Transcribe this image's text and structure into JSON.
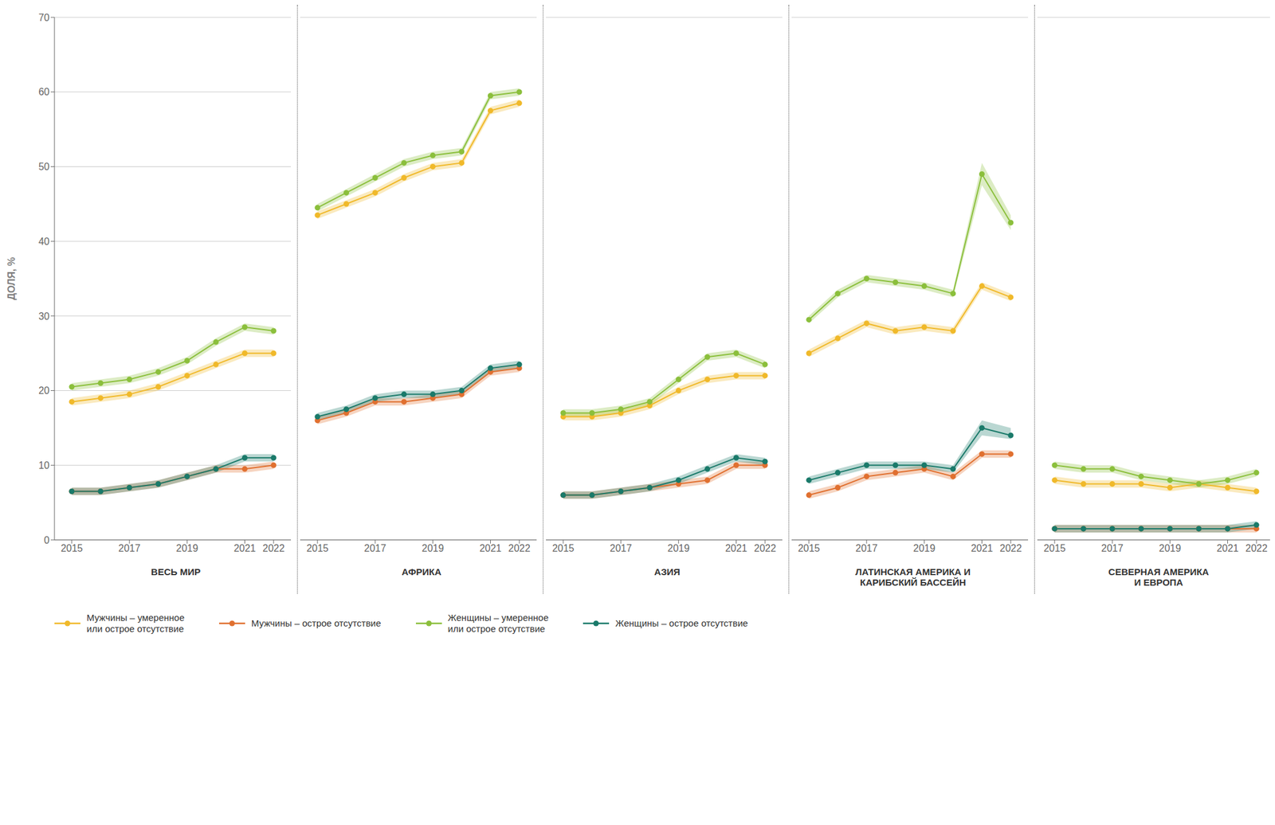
{
  "chart_data": [
    {
      "type": "line",
      "title": "ВЕСЬ МИР",
      "ylabel": "ДОЛЯ, %",
      "x": [
        2015,
        2016,
        2017,
        2018,
        2019,
        2020,
        2021,
        2022
      ],
      "xlim": [
        2014.4,
        2022.6
      ],
      "xticks": [
        2015,
        2017,
        2019,
        2021,
        2022
      ],
      "ylim": [
        0,
        70
      ],
      "yticks": [
        0,
        10,
        20,
        30,
        40,
        50,
        60,
        70
      ],
      "grid": true,
      "marker": "circle",
      "series": [
        {
          "name": "Мужчины – умеренное\nили острое отсутствие",
          "color": "#F0B92A",
          "values": [
            18.5,
            19.0,
            19.5,
            20.5,
            22.0,
            23.5,
            25.0,
            25.0
          ],
          "lower": [
            18.0,
            18.5,
            19.0,
            20.0,
            21.5,
            23.0,
            24.5,
            24.5
          ],
          "upper": [
            19.0,
            19.5,
            20.0,
            21.0,
            22.5,
            24.0,
            25.5,
            25.5
          ]
        },
        {
          "name": "Мужчины – острое отсутствие",
          "color": "#E07030",
          "values": [
            6.5,
            6.5,
            7.0,
            7.5,
            8.5,
            9.5,
            9.5,
            10.0
          ],
          "lower": [
            6.0,
            6.0,
            6.5,
            7.0,
            8.0,
            9.0,
            9.0,
            9.5
          ],
          "upper": [
            7.0,
            7.0,
            7.5,
            8.0,
            9.0,
            10.0,
            10.0,
            10.5
          ]
        },
        {
          "name": "Женщины – умеренное\nили острое отсутствие",
          "color": "#8BBF3C",
          "values": [
            20.5,
            21.0,
            21.5,
            22.5,
            24.0,
            26.5,
            28.5,
            28.0
          ],
          "lower": [
            20.0,
            20.5,
            21.0,
            22.0,
            23.5,
            26.0,
            28.0,
            27.5
          ],
          "upper": [
            21.0,
            21.5,
            22.0,
            23.0,
            24.5,
            27.0,
            29.0,
            28.5
          ]
        },
        {
          "name": "Женщины – острое отсутствие",
          "color": "#1A7A6A",
          "values": [
            6.5,
            6.5,
            7.0,
            7.5,
            8.5,
            9.5,
            11.0,
            11.0
          ],
          "lower": [
            6.0,
            6.0,
            6.5,
            7.0,
            8.0,
            9.0,
            10.5,
            10.5
          ],
          "upper": [
            7.0,
            7.0,
            7.5,
            8.0,
            9.0,
            10.0,
            11.5,
            11.5
          ]
        }
      ]
    },
    {
      "type": "line",
      "title": "АФРИКА",
      "x": [
        2015,
        2016,
        2017,
        2018,
        2019,
        2020,
        2021,
        2022
      ],
      "xlim": [
        2014.4,
        2022.6
      ],
      "xticks": [
        2015,
        2017,
        2019,
        2021,
        2022
      ],
      "ylim": [
        0,
        70
      ],
      "yticks": [
        0,
        10,
        20,
        30,
        40,
        50,
        60,
        70
      ],
      "grid": true,
      "tick_labels": "x",
      "marker": "circle",
      "series": [
        {
          "name": "Мужчины – умеренное\nили острое отсутствие",
          "color": "#F0B92A",
          "values": [
            43.5,
            45.0,
            46.5,
            48.5,
            50.0,
            50.5,
            57.5,
            58.5
          ],
          "lower": [
            43.0,
            44.5,
            46.0,
            48.0,
            49.5,
            50.0,
            57.0,
            58.0
          ],
          "upper": [
            44.0,
            45.5,
            47.0,
            49.0,
            50.5,
            51.0,
            58.0,
            59.0
          ]
        },
        {
          "name": "Мужчины – острое отсутствие",
          "color": "#E07030",
          "values": [
            16.0,
            17.0,
            18.5,
            18.5,
            19.0,
            19.5,
            22.5,
            23.0
          ],
          "lower": [
            15.5,
            16.5,
            18.0,
            18.0,
            18.5,
            19.0,
            22.0,
            22.5
          ],
          "upper": [
            16.5,
            17.5,
            19.0,
            19.0,
            19.5,
            20.0,
            23.0,
            23.5
          ]
        },
        {
          "name": "Женщины – умеренное\nили острое отсутствие",
          "color": "#8BBF3C",
          "values": [
            44.5,
            46.5,
            48.5,
            50.5,
            51.5,
            52.0,
            59.5,
            60.0
          ],
          "lower": [
            44.0,
            46.0,
            48.0,
            50.0,
            51.0,
            51.5,
            59.0,
            59.5
          ],
          "upper": [
            45.0,
            47.0,
            49.0,
            51.0,
            52.0,
            52.5,
            60.0,
            60.5
          ]
        },
        {
          "name": "Женщины – острое отсутствие",
          "color": "#1A7A6A",
          "values": [
            16.5,
            17.5,
            19.0,
            19.5,
            19.5,
            20.0,
            23.0,
            23.5
          ],
          "lower": [
            16.0,
            17.0,
            18.5,
            19.0,
            19.0,
            19.5,
            22.5,
            23.0
          ],
          "upper": [
            17.0,
            18.0,
            19.5,
            20.0,
            20.0,
            20.5,
            23.5,
            24.0
          ]
        }
      ]
    },
    {
      "type": "line",
      "title": "АЗИЯ",
      "x": [
        2015,
        2016,
        2017,
        2018,
        2019,
        2020,
        2021,
        2022
      ],
      "xlim": [
        2014.4,
        2022.6
      ],
      "xticks": [
        2015,
        2017,
        2019,
        2021,
        2022
      ],
      "ylim": [
        0,
        70
      ],
      "yticks": [
        0,
        10,
        20,
        30,
        40,
        50,
        60,
        70
      ],
      "grid": true,
      "tick_labels": "x",
      "marker": "circle",
      "series": [
        {
          "name": "Мужчины – умеренное\nили острое отсутствие",
          "color": "#F0B92A",
          "values": [
            16.5,
            16.5,
            17.0,
            18.0,
            20.0,
            21.5,
            22.0,
            22.0
          ],
          "lower": [
            16.0,
            16.0,
            16.5,
            17.5,
            19.5,
            21.0,
            21.5,
            21.5
          ],
          "upper": [
            17.0,
            17.0,
            17.5,
            18.5,
            20.5,
            22.0,
            22.5,
            22.5
          ]
        },
        {
          "name": "Мужчины – острое отсутствие",
          "color": "#E07030",
          "values": [
            6.0,
            6.0,
            6.5,
            7.0,
            7.5,
            8.0,
            10.0,
            10.0
          ],
          "lower": [
            5.5,
            5.5,
            6.0,
            6.5,
            7.0,
            7.5,
            9.5,
            9.5
          ],
          "upper": [
            6.5,
            6.5,
            7.0,
            7.5,
            8.0,
            8.5,
            10.5,
            10.5
          ]
        },
        {
          "name": "Женщины – умеренное\nили острое отсутствие",
          "color": "#8BBF3C",
          "values": [
            17.0,
            17.0,
            17.5,
            18.5,
            21.5,
            24.5,
            25.0,
            23.5
          ],
          "lower": [
            16.5,
            16.5,
            17.0,
            18.0,
            21.0,
            24.0,
            24.5,
            23.0
          ],
          "upper": [
            17.5,
            17.5,
            18.0,
            19.0,
            22.0,
            25.0,
            25.5,
            24.0
          ]
        },
        {
          "name": "Женщины – острое отсутствие",
          "color": "#1A7A6A",
          "values": [
            6.0,
            6.0,
            6.5,
            7.0,
            8.0,
            9.5,
            11.0,
            10.5
          ],
          "lower": [
            5.5,
            5.5,
            6.0,
            6.5,
            7.5,
            9.0,
            10.5,
            10.0
          ],
          "upper": [
            6.5,
            6.5,
            7.0,
            7.5,
            8.5,
            10.0,
            11.5,
            11.0
          ]
        }
      ]
    },
    {
      "type": "line",
      "title": "ЛАТИНСКАЯ АМЕРИКА И\nКАРИБСКИЙ БАССЕЙН",
      "x": [
        2015,
        2016,
        2017,
        2018,
        2019,
        2020,
        2021,
        2022
      ],
      "xlim": [
        2014.4,
        2022.6
      ],
      "xticks": [
        2015,
        2017,
        2019,
        2021,
        2022
      ],
      "ylim": [
        0,
        70
      ],
      "yticks": [
        0,
        10,
        20,
        30,
        40,
        50,
        60,
        70
      ],
      "grid": true,
      "tick_labels": "x",
      "marker": "circle",
      "series": [
        {
          "name": "Мужчины – умеренное\nили острое отсутствие",
          "color": "#F0B92A",
          "values": [
            25.0,
            27.0,
            29.0,
            28.0,
            28.5,
            28.0,
            34.0,
            32.5
          ],
          "lower": [
            24.5,
            26.5,
            28.5,
            27.5,
            28.0,
            27.5,
            33.5,
            32.0
          ],
          "upper": [
            25.5,
            27.5,
            29.5,
            28.5,
            29.0,
            28.5,
            34.5,
            33.0
          ]
        },
        {
          "name": "Мужчины – острое отсутствие",
          "color": "#E07030",
          "values": [
            6.0,
            7.0,
            8.5,
            9.0,
            9.5,
            8.5,
            11.5,
            11.5
          ],
          "lower": [
            5.5,
            6.5,
            8.0,
            8.5,
            9.0,
            8.0,
            11.0,
            11.0
          ],
          "upper": [
            6.5,
            7.5,
            9.0,
            9.5,
            10.0,
            9.0,
            12.0,
            12.0
          ]
        },
        {
          "name": "Женщины – умеренное\nили острое отсутствие",
          "color": "#8BBF3C",
          "values": [
            29.5,
            33.0,
            35.0,
            34.5,
            34.0,
            33.0,
            49.0,
            42.5
          ],
          "lower": [
            29.0,
            32.5,
            34.5,
            34.0,
            33.5,
            32.5,
            47.5,
            41.5
          ],
          "upper": [
            30.0,
            33.5,
            35.5,
            35.0,
            34.5,
            33.5,
            50.5,
            43.5
          ]
        },
        {
          "name": "Женщины – острое отсутствие",
          "color": "#1A7A6A",
          "values": [
            8.0,
            9.0,
            10.0,
            10.0,
            10.0,
            9.5,
            15.0,
            14.0
          ],
          "lower": [
            7.5,
            8.5,
            9.5,
            9.5,
            9.5,
            9.0,
            14.0,
            13.5
          ],
          "upper": [
            8.5,
            9.5,
            10.5,
            10.5,
            10.5,
            10.0,
            16.0,
            15.0
          ]
        }
      ]
    },
    {
      "type": "line",
      "title": "СЕВЕРНАЯ АМЕРИКА\nИ ЕВРОПА",
      "x": [
        2015,
        2016,
        2017,
        2018,
        2019,
        2020,
        2021,
        2022
      ],
      "xlim": [
        2014.4,
        2022.6
      ],
      "xticks": [
        2015,
        2017,
        2019,
        2021,
        2022
      ],
      "ylim": [
        0,
        70
      ],
      "yticks": [
        0,
        10,
        20,
        30,
        40,
        50,
        60,
        70
      ],
      "grid": true,
      "tick_labels": "x",
      "marker": "circle",
      "series": [
        {
          "name": "Мужчины – умеренное\nили острое отсутствие",
          "color": "#F0B92A",
          "values": [
            8.0,
            7.5,
            7.5,
            7.5,
            7.0,
            7.5,
            7.0,
            6.5
          ],
          "lower": [
            7.5,
            7.0,
            7.0,
            7.0,
            6.5,
            7.0,
            6.5,
            6.0
          ],
          "upper": [
            8.5,
            8.0,
            8.0,
            8.0,
            7.5,
            8.0,
            7.5,
            7.0
          ]
        },
        {
          "name": "Мужчины – острое отсутствие",
          "color": "#E07030",
          "values": [
            1.5,
            1.5,
            1.5,
            1.5,
            1.5,
            1.5,
            1.5,
            1.5
          ],
          "lower": [
            1.0,
            1.0,
            1.0,
            1.0,
            1.0,
            1.0,
            1.0,
            1.0
          ],
          "upper": [
            2.0,
            2.0,
            2.0,
            2.0,
            2.0,
            2.0,
            2.0,
            2.0
          ]
        },
        {
          "name": "Женщины – умеренное\nили острое отсутствие",
          "color": "#8BBF3C",
          "values": [
            10.0,
            9.5,
            9.5,
            8.5,
            8.0,
            7.5,
            8.0,
            9.0
          ],
          "lower": [
            9.5,
            9.0,
            9.0,
            8.0,
            7.5,
            7.0,
            7.5,
            8.5
          ],
          "upper": [
            10.5,
            10.0,
            10.0,
            9.0,
            8.5,
            8.0,
            8.5,
            9.5
          ]
        },
        {
          "name": "Женщины – острое отсутствие",
          "color": "#1A7A6A",
          "values": [
            1.5,
            1.5,
            1.5,
            1.5,
            1.5,
            1.5,
            1.5,
            2.0
          ],
          "lower": [
            1.0,
            1.0,
            1.0,
            1.0,
            1.0,
            1.0,
            1.0,
            1.5
          ],
          "upper": [
            2.0,
            2.0,
            2.0,
            2.0,
            2.0,
            2.0,
            2.0,
            2.5
          ]
        }
      ]
    }
  ]
}
